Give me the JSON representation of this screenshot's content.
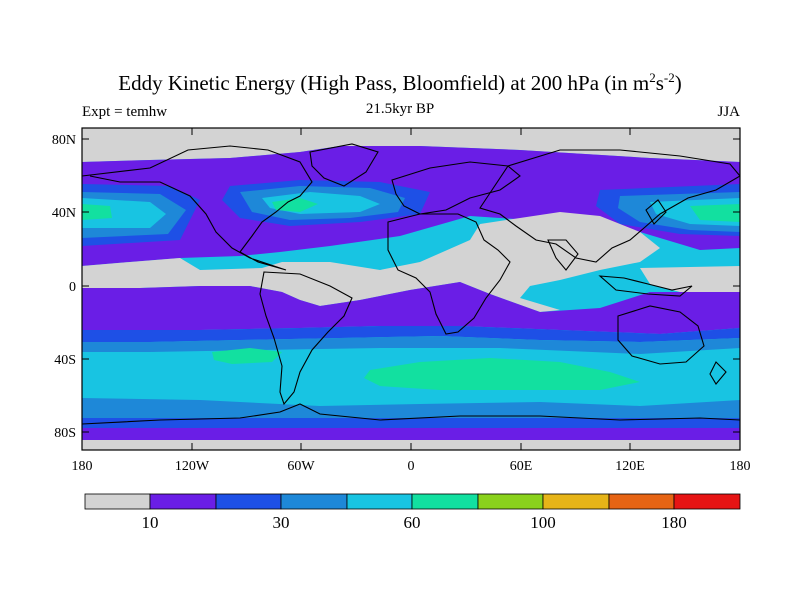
{
  "figure": {
    "title_main": "Eddy Kinetic Energy (High Pass, Bloomfield) at 200 hPa (in m",
    "title_sup1": "2",
    "title_mid": "s",
    "title_sup2": "-2",
    "title_end": ")",
    "subtitle": "21.5kyr BP",
    "left_label": "Expt = temhw",
    "right_label": "JJA"
  },
  "axes": {
    "lat_ticks": [
      "80N",
      "40N",
      "0",
      "40S",
      "80S"
    ],
    "lon_ticks": [
      "180",
      "120W",
      "60W",
      "0",
      "60E",
      "120E",
      "180"
    ]
  },
  "colorbar": {
    "colors": [
      "#d3d3d3",
      "#6a1ee6",
      "#1e50e6",
      "#1e88d8",
      "#18c4e2",
      "#12e0a0",
      "#8ad21c",
      "#e6b418",
      "#e66414",
      "#e61414"
    ],
    "labels": [
      "10",
      "30",
      "60",
      "100",
      "180"
    ]
  },
  "map_colors": {
    "gray": "#d3d3d3",
    "purple": "#6a1ee6",
    "blue": "#1e50e6",
    "midblue": "#1e88d8",
    "cyan": "#18c4e2",
    "green": "#12e0a0",
    "coast": "#000000"
  }
}
